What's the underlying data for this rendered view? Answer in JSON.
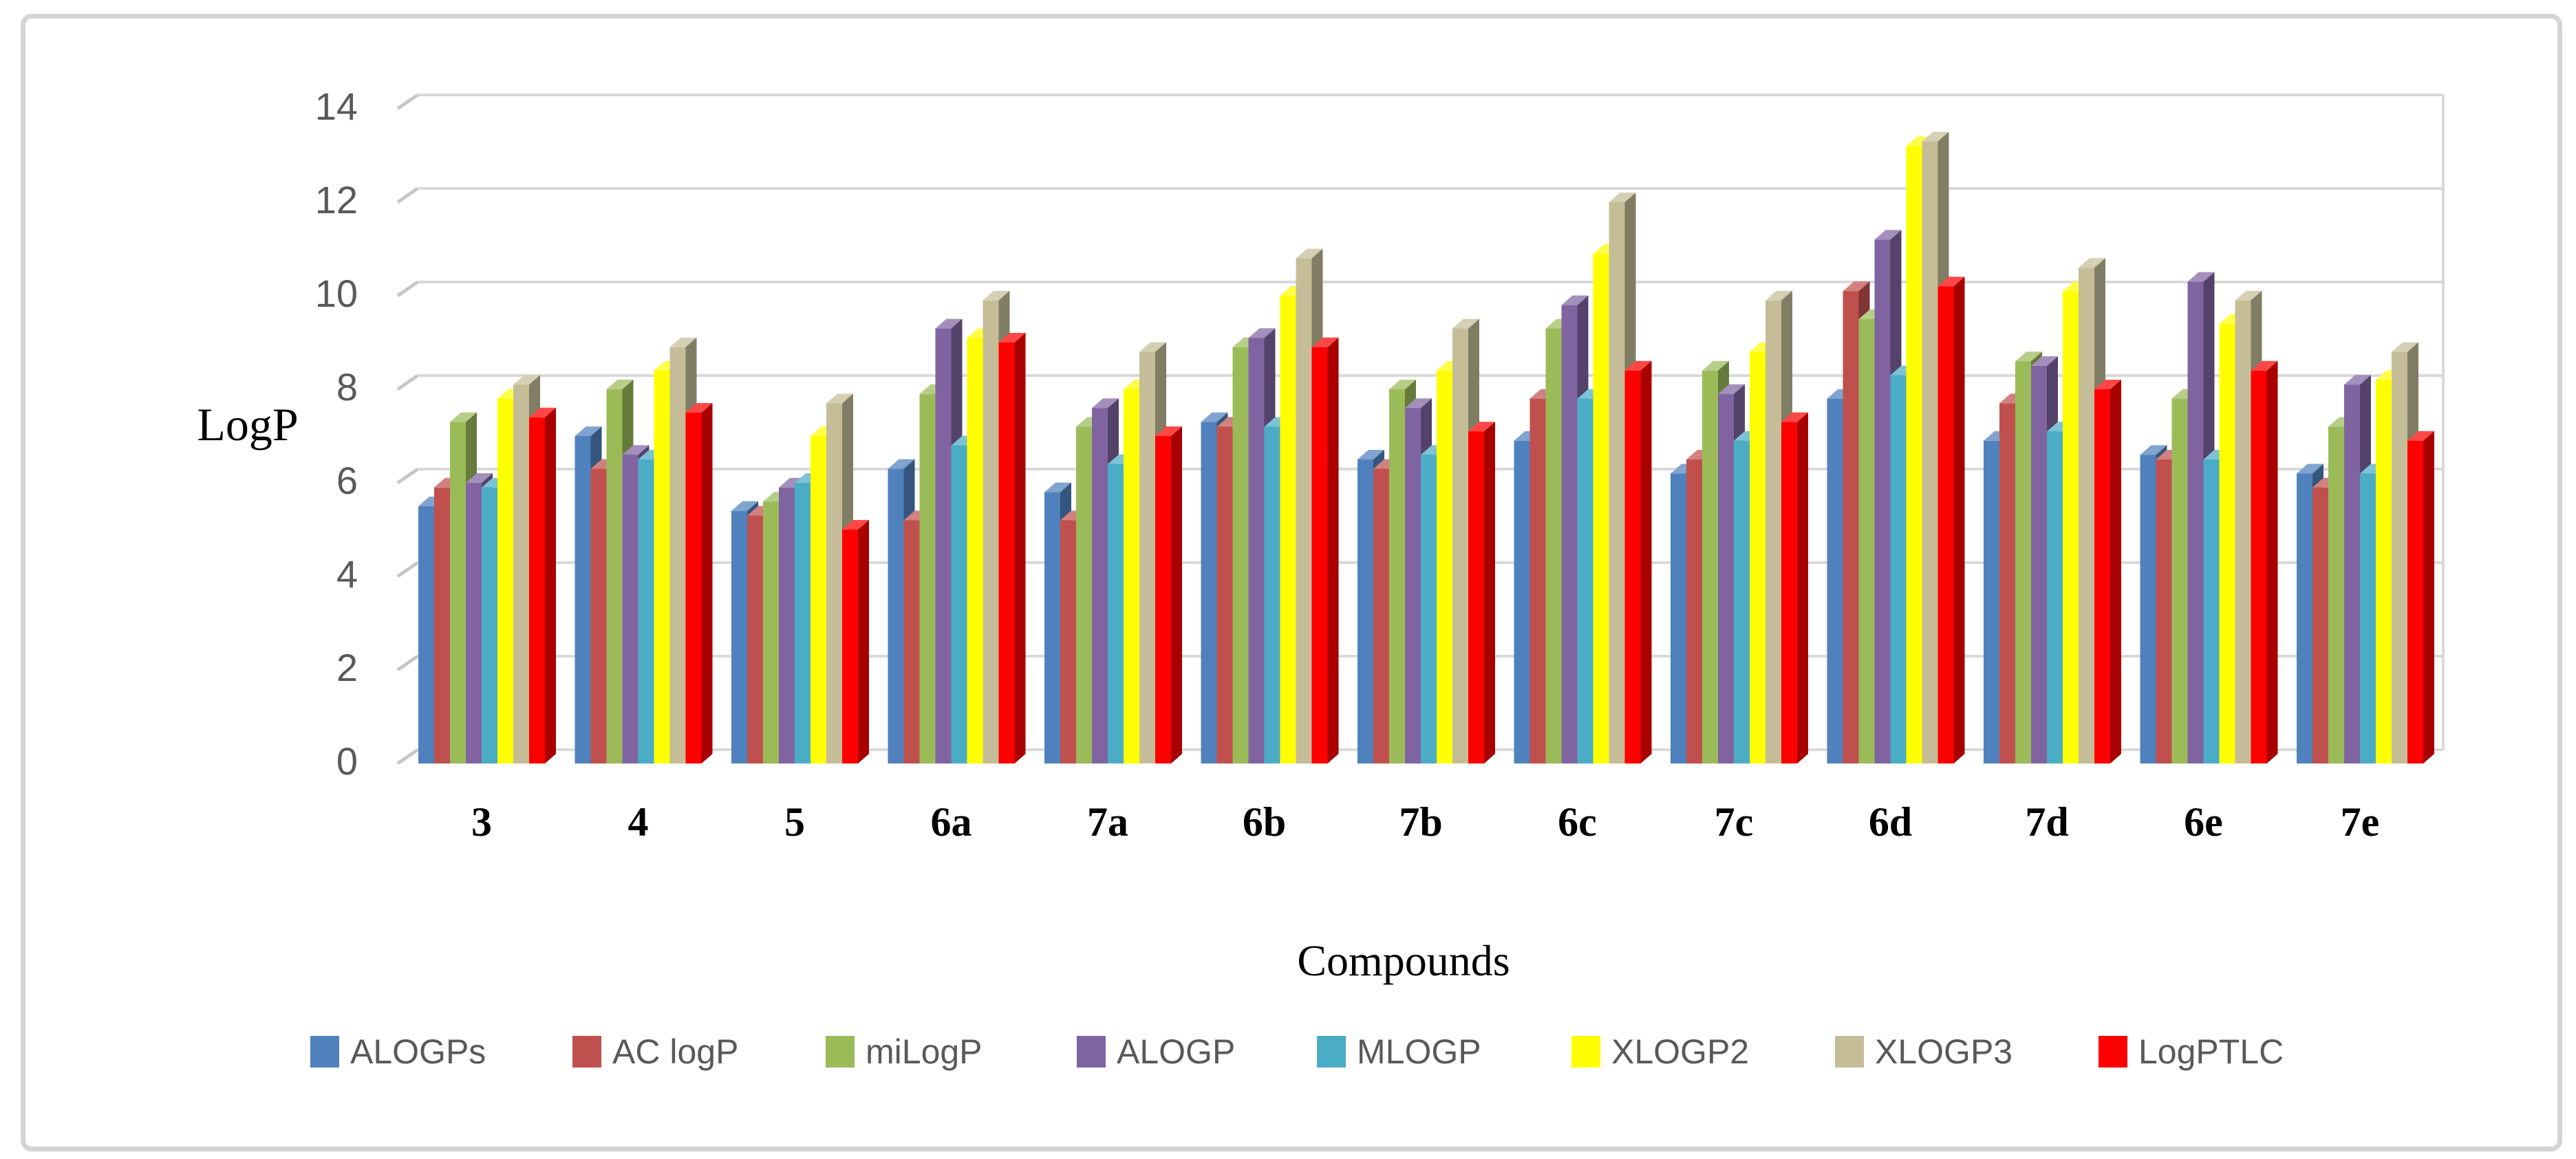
{
  "figure": {
    "y_axis_title": "LogP",
    "x_axis_title": "Compounds"
  },
  "chart_data": {
    "type": "bar",
    "title": "",
    "xlabel": "Compounds",
    "ylabel": "LogP",
    "ylim": [
      0,
      14
    ],
    "yticks": [
      0,
      2,
      4,
      6,
      8,
      10,
      12,
      14
    ],
    "grid": true,
    "legend_position": "bottom",
    "categories": [
      "3",
      "4",
      "5",
      "6a",
      "7a",
      "6b",
      "7b",
      "6c",
      "7c",
      "6d",
      "7d",
      "6e",
      "7e"
    ],
    "series": [
      {
        "name": "ALOGPs",
        "color": "#4F81BD",
        "values": [
          5.5,
          7.0,
          5.4,
          6.3,
          5.8,
          7.3,
          6.5,
          6.9,
          6.2,
          7.8,
          6.9,
          6.6,
          6.2
        ]
      },
      {
        "name": "AC logP",
        "color": "#C0504D",
        "values": [
          5.9,
          6.3,
          5.3,
          5.2,
          5.2,
          7.2,
          6.3,
          7.8,
          6.5,
          10.1,
          7.7,
          6.5,
          5.9
        ]
      },
      {
        "name": "miLogP",
        "color": "#9BBB59",
        "values": [
          7.3,
          8.0,
          5.6,
          7.9,
          7.2,
          8.9,
          8.0,
          9.3,
          8.4,
          9.5,
          8.6,
          7.8,
          7.2
        ]
      },
      {
        "name": "ALOGP",
        "color": "#8064A2",
        "values": [
          6.0,
          6.6,
          5.9,
          9.3,
          7.6,
          9.1,
          7.6,
          9.8,
          7.9,
          11.2,
          8.5,
          10.3,
          8.1
        ]
      },
      {
        "name": "MLOGP",
        "color": "#4BACC6",
        "values": [
          5.9,
          6.5,
          6.0,
          6.8,
          6.4,
          7.2,
          6.6,
          7.8,
          6.9,
          8.3,
          7.1,
          6.5,
          6.2
        ]
      },
      {
        "name": "XLOGP2",
        "color": "#FFFF00",
        "values": [
          7.8,
          8.4,
          7.0,
          9.1,
          8.0,
          10.0,
          8.4,
          10.9,
          8.8,
          13.2,
          10.1,
          9.4,
          8.2
        ]
      },
      {
        "name": "XLOGP3",
        "color": "#C4BD97",
        "values": [
          8.1,
          8.9,
          7.7,
          9.9,
          8.8,
          10.8,
          9.3,
          12.0,
          9.9,
          13.3,
          10.6,
          9.9,
          8.8
        ]
      },
      {
        "name": "LogPTLC",
        "color": "#FF0000",
        "values": [
          7.4,
          7.5,
          5.0,
          9.0,
          7.0,
          8.9,
          7.1,
          8.4,
          7.3,
          10.2,
          8.0,
          8.4,
          6.9
        ]
      }
    ]
  },
  "style": {
    "gridline_color": "#D9D9D9",
    "tick_dash_color": "#C6C6C6",
    "axis_text_color": "#595959",
    "category_text_color": "#000000",
    "frame_border_color": "#D4D4D4",
    "background_color": "#FFFFFF"
  }
}
